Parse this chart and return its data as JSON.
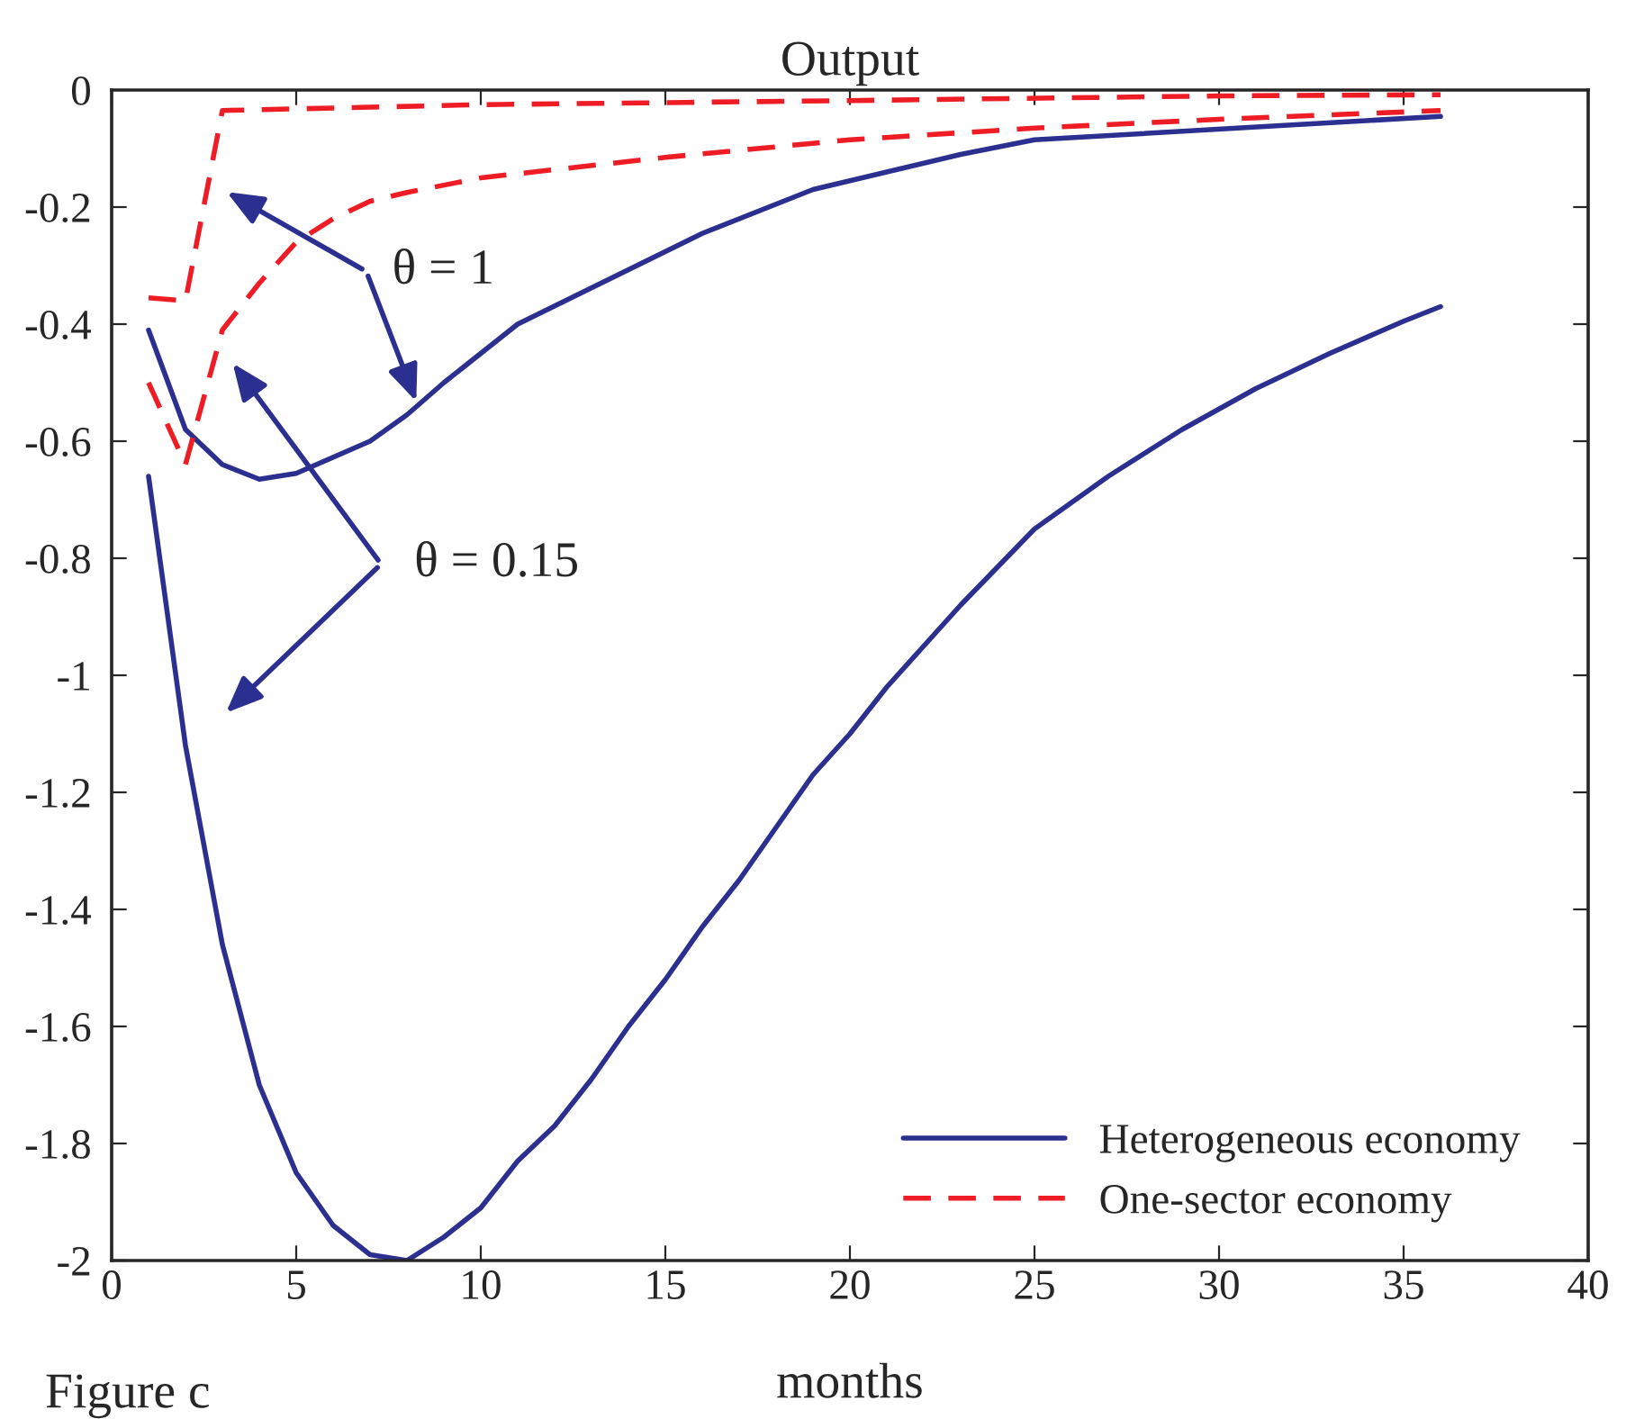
{
  "chart_data": {
    "type": "line",
    "title": "Output",
    "xlabel": "months",
    "annotations": [
      "θ = 1",
      "θ = 0.15",
      "Figure c"
    ],
    "xlim": [
      0,
      40
    ],
    "xticks": [
      0,
      5,
      10,
      15,
      20,
      25,
      30,
      35,
      40
    ],
    "ylim": [
      -2,
      0
    ],
    "yticks": [
      -2,
      -1.8,
      -1.6,
      -1.4,
      -1.2,
      -1,
      -0.8,
      -0.6,
      -0.4,
      -0.2,
      0
    ],
    "grid": false,
    "legend": "bottom right",
    "marker": "none",
    "series": [
      {
        "name": "Heterogeneous economy",
        "color": "#2b2f8f",
        "line_style": "solid",
        "x": [
          1,
          2,
          3,
          4,
          5,
          7,
          8,
          9,
          11,
          16,
          19,
          23,
          25,
          36
        ],
        "values": [
          -0.41,
          -0.58,
          -0.64,
          -0.665,
          -0.655,
          -0.6,
          -0.555,
          -0.5,
          -0.4,
          -0.245,
          -0.17,
          -0.11,
          -0.085,
          -0.045
        ]
      },
      {
        "color": "#2b2f8f",
        "line_style": "solid",
        "x": [
          1,
          2,
          3,
          4,
          5,
          6,
          7,
          8,
          9,
          10,
          11,
          12,
          13,
          14,
          15,
          16,
          17,
          18,
          19,
          20,
          21,
          22,
          23,
          24,
          25,
          27,
          29,
          31,
          33,
          35,
          36
        ],
        "values": [
          -0.66,
          -1.12,
          -1.46,
          -1.7,
          -1.85,
          -1.94,
          -1.99,
          -2.0,
          -1.96,
          -1.91,
          -1.83,
          -1.77,
          -1.69,
          -1.6,
          -1.52,
          -1.43,
          -1.35,
          -1.26,
          -1.17,
          -1.1,
          -1.02,
          -0.95,
          -0.88,
          -0.815,
          -0.75,
          -0.66,
          -0.58,
          -0.51,
          -0.45,
          -0.395,
          -0.37
        ]
      },
      {
        "name": "One-sector economy",
        "color": "#ee1c25",
        "line_style": "dashed",
        "x": [
          1,
          2,
          3,
          10,
          20,
          30,
          36
        ],
        "values": [
          -0.355,
          -0.36,
          -0.035,
          -0.025,
          -0.018,
          -0.01,
          -0.008
        ]
      },
      {
        "color": "#ee1c25",
        "line_style": "dashed",
        "x": [
          1,
          2,
          3,
          4,
          5,
          6,
          7,
          8,
          10,
          15,
          20,
          25,
          30,
          36
        ],
        "values": [
          -0.5,
          -0.64,
          -0.41,
          -0.33,
          -0.26,
          -0.22,
          -0.19,
          -0.175,
          -0.15,
          -0.115,
          -0.085,
          -0.065,
          -0.05,
          -0.035
        ]
      }
    ]
  }
}
